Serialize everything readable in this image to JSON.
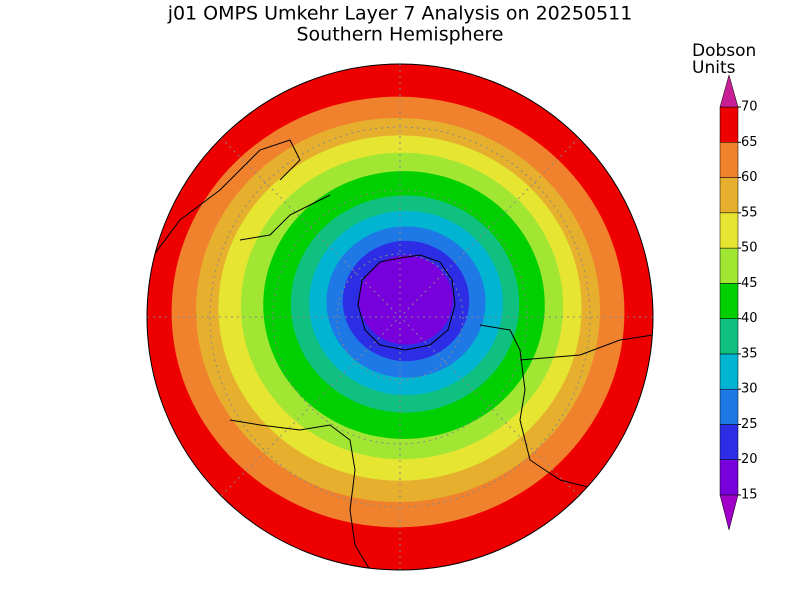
{
  "header": {
    "title": "j01 OMPS Umkehr Layer 7 Analysis on 20250511",
    "subtitle": "Southern Hemisphere"
  },
  "colorbar": {
    "label_line1": "Dobson",
    "label_line2": "Units",
    "ticks": [
      15,
      20,
      25,
      30,
      35,
      40,
      45,
      50,
      55,
      60,
      65,
      70
    ],
    "colors": [
      "#7800dc",
      "#2d2de6",
      "#1e78e6",
      "#00b4d2",
      "#10c080",
      "#00d000",
      "#a0e632",
      "#e6e632",
      "#e6af2d",
      "#f0822d",
      "#ee0000"
    ],
    "under_color": "#a000c8",
    "over_color": "#c81e96"
  }
}
